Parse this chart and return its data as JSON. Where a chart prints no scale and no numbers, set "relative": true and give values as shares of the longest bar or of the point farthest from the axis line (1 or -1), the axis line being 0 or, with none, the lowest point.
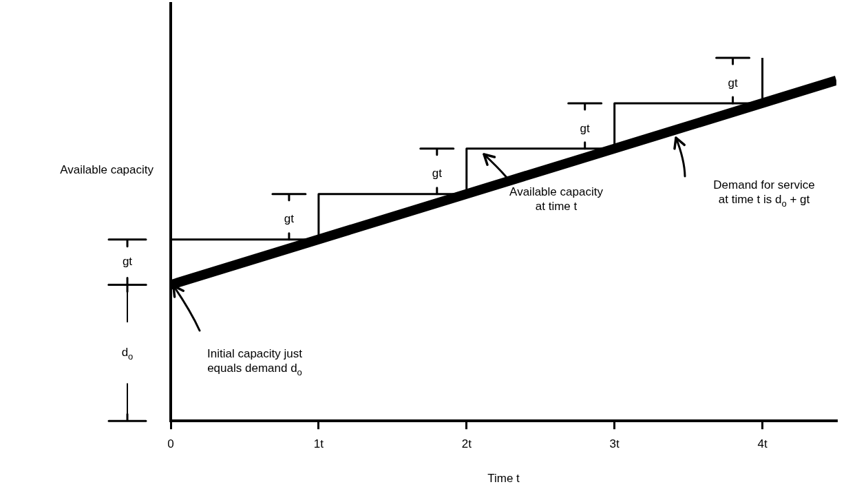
{
  "chart_data": {
    "type": "line",
    "xlabel": "Time t",
    "ylabel": "Available capacity",
    "relative": true,
    "xlim": [
      0,
      4.5
    ],
    "xticks": [
      0,
      {
        "value": 1,
        "label": "1t"
      },
      {
        "value": 2,
        "label": "2t"
      },
      {
        "value": 3,
        "label": "3t"
      },
      {
        "value": 4,
        "label": "4t"
      }
    ],
    "grid": false,
    "legend": false,
    "marker": "none",
    "tick_labels": "x",
    "series": [
      {
        "type": "step",
        "color": "#000000",
        "x": [
          0,
          1,
          2,
          3,
          4
        ],
        "values": [
          0.5,
          0.625,
          0.75,
          0.875,
          1
        ]
      },
      {
        "type": "line",
        "color": "#000000",
        "x": [
          0,
          4.5
        ],
        "values": [
          0.375,
          0.938
        ]
      }
    ],
    "annotations": [
      "gt",
      "d$_{o}$",
      "gt",
      "gt",
      "gt",
      "gt",
      "Available capacity\nat time t",
      "Demand for service\nat time t is d$_{o}$ + gt",
      "Initial capacity just\nequals demand d$_{o}$"
    ]
  }
}
